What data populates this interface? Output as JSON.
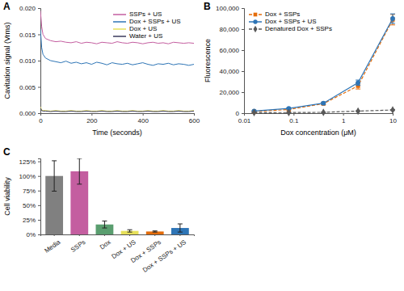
{
  "chart_data": [
    {
      "type": "line",
      "panel": "A",
      "x_label": "Time (seconds)",
      "y_label": "Cavitation signal (Vrms)",
      "x": [
        0,
        5,
        10,
        20,
        40,
        60,
        80,
        100,
        120,
        140,
        160,
        180,
        200,
        220,
        240,
        260,
        280,
        300,
        320,
        340,
        360,
        380,
        400,
        420,
        440,
        460,
        480,
        500,
        520,
        540,
        560,
        580,
        600
      ],
      "xlim": [
        0,
        600
      ],
      "xticks": [
        0,
        200,
        400,
        600
      ],
      "ylim": [
        0,
        0.02
      ],
      "yticks": [
        {
          "value": 0,
          "label": "0.000"
        },
        {
          "value": 0.005,
          "label": "0.005"
        },
        {
          "value": 0.01,
          "label": "0.010"
        },
        {
          "value": 0.015,
          "label": "0.015"
        },
        {
          "value": 0.02,
          "label": "0.020"
        }
      ],
      "legend": "upper right",
      "series": [
        {
          "name": "SSPs + US",
          "color": "#c45ea0",
          "values": [
            0.0195,
            0.0165,
            0.015,
            0.0142,
            0.0138,
            0.0136,
            0.0137,
            0.0135,
            0.0134,
            0.0136,
            0.0133,
            0.0135,
            0.0134,
            0.0132,
            0.0135,
            0.0134,
            0.0133,
            0.0136,
            0.0134,
            0.0133,
            0.0135,
            0.0134,
            0.0132,
            0.0134,
            0.0135,
            0.0133,
            0.0134,
            0.0132,
            0.0135,
            0.0134,
            0.0133,
            0.0134,
            0.0133
          ]
        },
        {
          "name": "Dox + SSPs + US",
          "color": "#2e75b6",
          "values": [
            0.016,
            0.0125,
            0.0112,
            0.0105,
            0.01,
            0.0098,
            0.0096,
            0.0099,
            0.0095,
            0.0097,
            0.0094,
            0.0096,
            0.0093,
            0.0097,
            0.0095,
            0.0092,
            0.0096,
            0.0094,
            0.0093,
            0.0095,
            0.0092,
            0.0094,
            0.0096,
            0.0093,
            0.0091,
            0.0094,
            0.0093,
            0.0095,
            0.0092,
            0.0094,
            0.0093,
            0.0091,
            0.0093
          ]
        },
        {
          "name": "Dox + US",
          "color": "#e6e05a",
          "values": [
            0.0012,
            0.0006,
            0.0005,
            0.0005,
            0.0004,
            0.0005,
            0.0004,
            0.0004,
            0.0005,
            0.0004,
            0.0004,
            0.0005,
            0.0004,
            0.0004,
            0.0005,
            0.0004,
            0.0004,
            0.0005,
            0.0004,
            0.0004,
            0.0005,
            0.0004,
            0.0004,
            0.0005,
            0.0004,
            0.0004,
            0.0005,
            0.0004,
            0.0004,
            0.0005,
            0.0004,
            0.0004,
            0.0005
          ]
        },
        {
          "name": "Water + US",
          "color": "#3b3b5c",
          "values": [
            0.001,
            0.0005,
            0.0004,
            0.0004,
            0.0003,
            0.0004,
            0.0003,
            0.0003,
            0.0004,
            0.0003,
            0.0003,
            0.0004,
            0.0003,
            0.0003,
            0.0004,
            0.0003,
            0.0003,
            0.0004,
            0.0003,
            0.0003,
            0.0004,
            0.0003,
            0.0003,
            0.0004,
            0.0003,
            0.0003,
            0.0004,
            0.0003,
            0.0003,
            0.0004,
            0.0003,
            0.0003,
            0.0004
          ]
        }
      ]
    },
    {
      "type": "line",
      "panel": "B",
      "x_label": "Dox concentration (μM)",
      "y_label": "Fluorescence",
      "log": "x",
      "x": [
        0.016,
        0.08,
        0.4,
        2,
        10
      ],
      "xlim": [
        0.01,
        10
      ],
      "xticks": [
        0.01,
        0.1,
        1,
        10
      ],
      "ylim": [
        0,
        100000
      ],
      "yticks": [
        0,
        {
          "value": 20000,
          "label": "20,000"
        },
        {
          "value": 40000,
          "label": "40,000"
        },
        {
          "value": 60000,
          "label": "60,000"
        },
        {
          "value": 80000,
          "label": "80,000"
        },
        {
          "value": 100000,
          "label": "100,000"
        }
      ],
      "legend": "upper left",
      "series": [
        {
          "name": "Dox + SSPs",
          "color": "#e46c0a",
          "marker": "square",
          "line_style": "dashed",
          "values": [
            1500,
            3500,
            9000,
            26000,
            89000
          ],
          "errors": [
            300,
            500,
            900,
            3000,
            5000
          ]
        },
        {
          "name": "Dox + SSPs + US",
          "color": "#2e75b6",
          "marker": "circle",
          "line_style": "solid",
          "values": [
            2000,
            4500,
            9500,
            29000,
            90000
          ],
          "errors": [
            400,
            600,
            1000,
            2500,
            4500
          ]
        },
        {
          "name": "Denatured Dox + SSPs",
          "color": "#595959",
          "marker": "diamond",
          "line_style": "dashed",
          "values": [
            500,
            600,
            800,
            2000,
            3000
          ],
          "errors": [
            100,
            100,
            150,
            300,
            500
          ]
        }
      ]
    },
    {
      "type": "bar",
      "panel": "C",
      "y_label": "Cell viability",
      "categories": [
        "Media",
        "SSPs",
        "Dox",
        "Dox + US",
        "Dox + SSPs",
        "Dox + SSPs + US"
      ],
      "values": [
        100,
        108,
        17,
        6,
        5,
        11
      ],
      "errors": [
        26,
        22,
        6,
        2,
        1,
        7
      ],
      "colors": [
        "#808080",
        "#c45ea0",
        "#5a9e6f",
        "#e6e05a",
        "#e46c0a",
        "#2e75b6"
      ],
      "ylim": [
        0,
        130
      ],
      "yticks": [
        {
          "value": 0,
          "label": "0%"
        },
        {
          "value": 25,
          "label": "25%"
        },
        {
          "value": 50,
          "label": "50%"
        },
        {
          "value": 75,
          "label": "75%"
        },
        {
          "value": 100,
          "label": "100%"
        },
        {
          "value": 125,
          "label": "125%"
        }
      ]
    }
  ]
}
